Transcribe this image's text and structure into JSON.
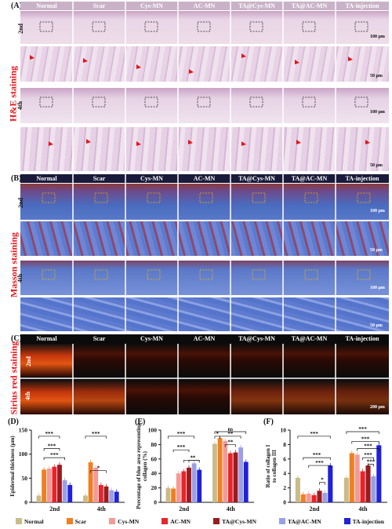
{
  "panels": {
    "A": {
      "label": "(A)",
      "side_label": "H&E staining",
      "row_labels": [
        "2nd",
        "4th"
      ]
    },
    "B": {
      "label": "(B)",
      "side_label": "Masson staining",
      "row_labels": [
        "2nd",
        "4th"
      ]
    },
    "C": {
      "label": "(C)",
      "side_label": "Sirius red staining",
      "row_labels": [
        "2nd",
        "4th"
      ]
    },
    "D": {
      "label": "(D)"
    },
    "E": {
      "label": "(E)"
    },
    "F": {
      "label": "(F)"
    }
  },
  "columns": [
    "Normal",
    "Scar",
    "Cys-MN",
    "AC-MN",
    "TA@Cys-MN",
    "TA@AC-MN",
    "TA-injection"
  ],
  "scale_bars": {
    "low": "100 μm",
    "high": "50 μm",
    "sirius": "200 μm"
  },
  "colors": {
    "Normal": "#c8bc8a",
    "Scar": "#f07f22",
    "Cys-MN": "#f49a96",
    "AC-MN": "#e8232a",
    "TA@Cys-MN": "#9b1b1e",
    "TA@AC-MN": "#9aa0e6",
    "TA-injection": "#1f22d6",
    "heading_red": "#e3141b",
    "he_bg": "#e7d3e4",
    "masson_bg": "#5a76c4",
    "sirius_bg": "#0b0b0b"
  },
  "legend": [
    "Normal",
    "Scar",
    "Cys-MN",
    "AC-MN",
    "TA@Cys-MN",
    "TA@AC-MN",
    "TA-injection"
  ],
  "chart_data": [
    {
      "id": "D",
      "type": "bar",
      "ylabel": "Epidermal thickness (μm)",
      "categories": [
        "2nd",
        "4th"
      ],
      "ylim": [
        0,
        150
      ],
      "yticks": [
        0,
        50,
        100,
        150
      ],
      "series": [
        {
          "name": "Normal",
          "values": [
            14,
            14
          ]
        },
        {
          "name": "Scar",
          "values": [
            68,
            83
          ]
        },
        {
          "name": "Cys-MN",
          "values": [
            70,
            72
          ]
        },
        {
          "name": "AC-MN",
          "values": [
            74,
            36
          ]
        },
        {
          "name": "TA@Cys-MN",
          "values": [
            78,
            33
          ]
        },
        {
          "name": "TA@AC-MN",
          "values": [
            46,
            25
          ]
        },
        {
          "name": "TA-injection",
          "values": [
            36,
            22
          ]
        }
      ],
      "significance": [
        "***",
        "***",
        "***",
        "***",
        "*"
      ]
    },
    {
      "id": "E",
      "type": "bar",
      "ylabel": "Percentage of blue area representing collagen (%)",
      "categories": [
        "2nd",
        "4th"
      ],
      "ylim": [
        0,
        100
      ],
      "yticks": [
        0,
        20,
        40,
        60,
        80,
        100
      ],
      "series": [
        {
          "name": "Normal",
          "values": [
            20,
            81
          ]
        },
        {
          "name": "Scar",
          "values": [
            19,
            89
          ]
        },
        {
          "name": "Cys-MN",
          "values": [
            40,
            85
          ]
        },
        {
          "name": "AC-MN",
          "values": [
            43,
            68
          ]
        },
        {
          "name": "TA@Cys-MN",
          "values": [
            48,
            69
          ]
        },
        {
          "name": "TA@AC-MN",
          "values": [
            54,
            76
          ]
        },
        {
          "name": "TA-injection",
          "values": [
            45,
            56
          ]
        }
      ],
      "significance": [
        "***",
        "***",
        "*",
        "*",
        "**",
        "*",
        "**",
        "ns"
      ]
    },
    {
      "id": "F",
      "type": "bar",
      "ylabel": "Ratio of collagen I to collagen III",
      "categories": [
        "2nd",
        "4th"
      ],
      "ylim": [
        0,
        10
      ],
      "yticks": [
        0,
        2,
        4,
        6,
        8,
        10
      ],
      "series": [
        {
          "name": "Normal",
          "values": [
            3.4,
            3.4
          ]
        },
        {
          "name": "Scar",
          "values": [
            1.1,
            6.8
          ]
        },
        {
          "name": "Cys-MN",
          "values": [
            1.2,
            6.6
          ]
        },
        {
          "name": "AC-MN",
          "values": [
            1.0,
            4.3
          ]
        },
        {
          "name": "TA@Cys-MN",
          "values": [
            1.6,
            5.1
          ]
        },
        {
          "name": "TA@AC-MN",
          "values": [
            1.3,
            3.6
          ]
        },
        {
          "name": "TA-injection",
          "values": [
            5.1,
            7.9
          ]
        }
      ],
      "significance": [
        "***",
        "***",
        "***",
        "*",
        "***",
        "***",
        "***",
        "***",
        "***"
      ]
    }
  ]
}
